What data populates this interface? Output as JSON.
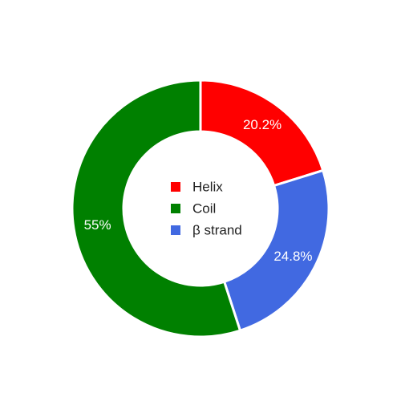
{
  "chart_data": {
    "type": "pie",
    "variant": "donut",
    "title": "",
    "categories": [
      "Helix",
      "β strand",
      "Coil"
    ],
    "values": [
      20.2,
      24.8,
      55
    ],
    "labels": [
      "20.2%",
      "24.8%",
      "55%"
    ],
    "colors": [
      "#ff0000",
      "#4169e1",
      "#008000"
    ],
    "legend": {
      "placement": "center",
      "entries": [
        {
          "label": "Helix",
          "color": "#ff0000"
        },
        {
          "label": "Coil",
          "color": "#008000"
        },
        {
          "label": "β strand",
          "color": "#4169e1"
        }
      ]
    }
  }
}
